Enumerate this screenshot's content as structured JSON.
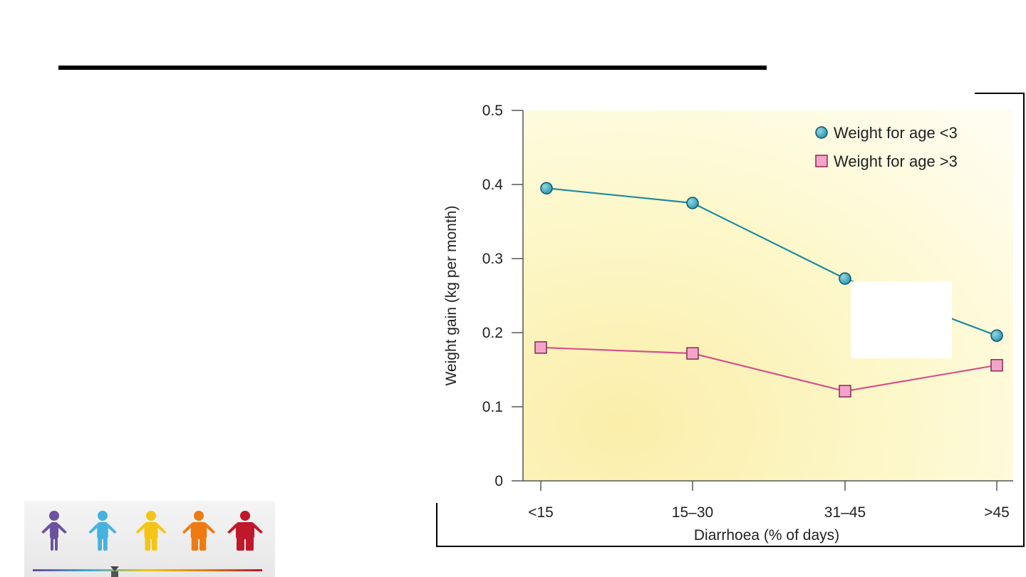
{
  "chart_data": {
    "type": "line",
    "categories": [
      "<15",
      "15–30",
      "31–45",
      ">45"
    ],
    "series": [
      {
        "name": "Weight for age <3",
        "marker": "circle",
        "color": "#1f8a9e",
        "fill": "#45b3c8",
        "values": [
          0.395,
          0.375,
          0.273,
          0.196
        ]
      },
      {
        "name": "Weight for age >3",
        "marker": "square",
        "color": "#d6508a",
        "fill": "#f2a5c8",
        "values": [
          0.18,
          0.172,
          0.121,
          0.156
        ]
      }
    ],
    "xlabel": "Diarrhoea (% of days)",
    "ylabel": "Weight gain (kg per month)",
    "ylim": [
      0,
      0.5
    ],
    "yticks": [
      "0",
      "0.1",
      "0.2",
      "0.3",
      "0.4",
      "0.5"
    ],
    "legend_position": "top-right",
    "background": "#fdf7c4"
  },
  "figures": [
    {
      "icon": "person-icon",
      "color": "#6b52a0"
    },
    {
      "icon": "person-icon",
      "color": "#45b2e0"
    },
    {
      "icon": "person-icon",
      "color": "#f5c516"
    },
    {
      "icon": "person-icon",
      "color": "#ee7b12"
    },
    {
      "icon": "person-icon",
      "color": "#c0182b"
    }
  ]
}
